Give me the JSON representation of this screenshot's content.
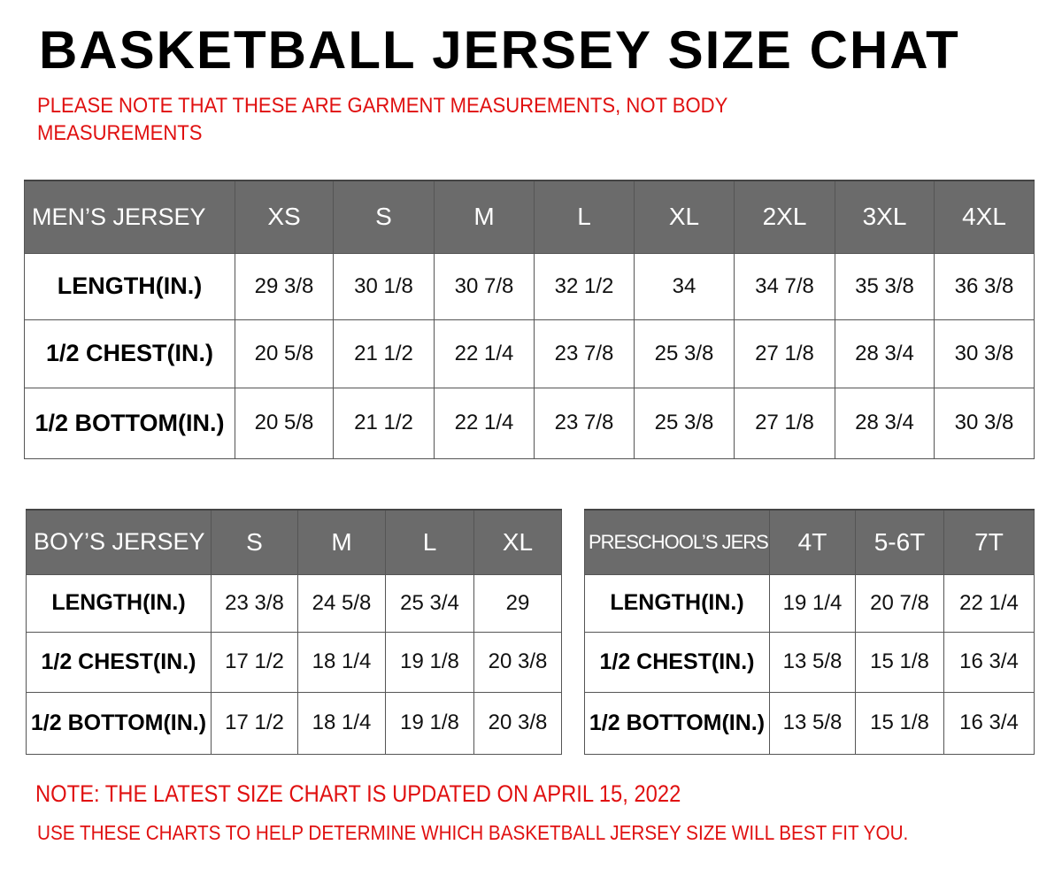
{
  "title": "BASKETBALL JERSEY SIZE CHAT",
  "note": "PLEASE NOTE THAT THESE ARE GARMENT MEASUREMENTS, NOT BODY MEASUREMENTS",
  "footer": {
    "updated": "NOTE: THE LATEST SIZE CHART IS UPDATED ON APRIL 15, 2022",
    "advice": "USE THESE CHARTS TO HELP DETERMINE WHICH  BASKETBALL JERSEY  SIZE WILL BEST FIT YOU."
  },
  "colors": {
    "header_bg": "#6b6b6b",
    "note": "#e01010"
  },
  "tables": {
    "mens": {
      "label": "MEN’S JERSEY",
      "sizes": [
        "XS",
        "S",
        "M",
        "L",
        "XL",
        "2XL",
        "3XL",
        "4XL"
      ],
      "rows": [
        {
          "label": "LENGTH(IN.)",
          "values": [
            "29  3/8",
            "30  1/8",
            "30  7/8",
            "32  1/2",
            "34",
            "34  7/8",
            "35  3/8",
            "36  3/8"
          ]
        },
        {
          "label": "1/2  CHEST(IN.)",
          "values": [
            "20  5/8",
            "21  1/2",
            "22  1/4",
            "23  7/8",
            "25  3/8",
            "27  1/8",
            "28  3/4",
            "30  3/8"
          ]
        },
        {
          "label": "1/2  BOTTOM(IN.)",
          "values": [
            "20  5/8",
            "21  1/2",
            "22  1/4",
            "23  7/8",
            "25  3/8",
            "27  1/8",
            "28  3/4",
            "30  3/8"
          ]
        }
      ]
    },
    "boys": {
      "label": "BOY’S JERSEY",
      "sizes": [
        "S",
        "M",
        "L",
        "XL"
      ],
      "rows": [
        {
          "label": "LENGTH(IN.)",
          "values": [
            "23  3/8",
            "24  5/8",
            "25  3/4",
            "29"
          ]
        },
        {
          "label": "1/2  CHEST(IN.)",
          "values": [
            "17  1/2",
            "18  1/4",
            "19  1/8",
            "20  3/8"
          ]
        },
        {
          "label": "1/2  BOTTOM(IN.)",
          "values": [
            "17  1/2",
            "18  1/4",
            "19  1/8",
            "20  3/8"
          ]
        }
      ]
    },
    "preschool": {
      "label": "PRESCHOOL’S JERSEY",
      "sizes": [
        "4T",
        "5-6T",
        "7T"
      ],
      "rows": [
        {
          "label": "LENGTH(IN.)",
          "values": [
            "19  1/4",
            "20  7/8",
            "22  1/4"
          ]
        },
        {
          "label": "1/2  CHEST(IN.)",
          "values": [
            "13  5/8",
            "15  1/8",
            "16  3/4"
          ]
        },
        {
          "label": "1/2  BOTTOM(IN.)",
          "values": [
            "13  5/8",
            "15  1/8",
            "16  3/4"
          ]
        }
      ]
    }
  }
}
